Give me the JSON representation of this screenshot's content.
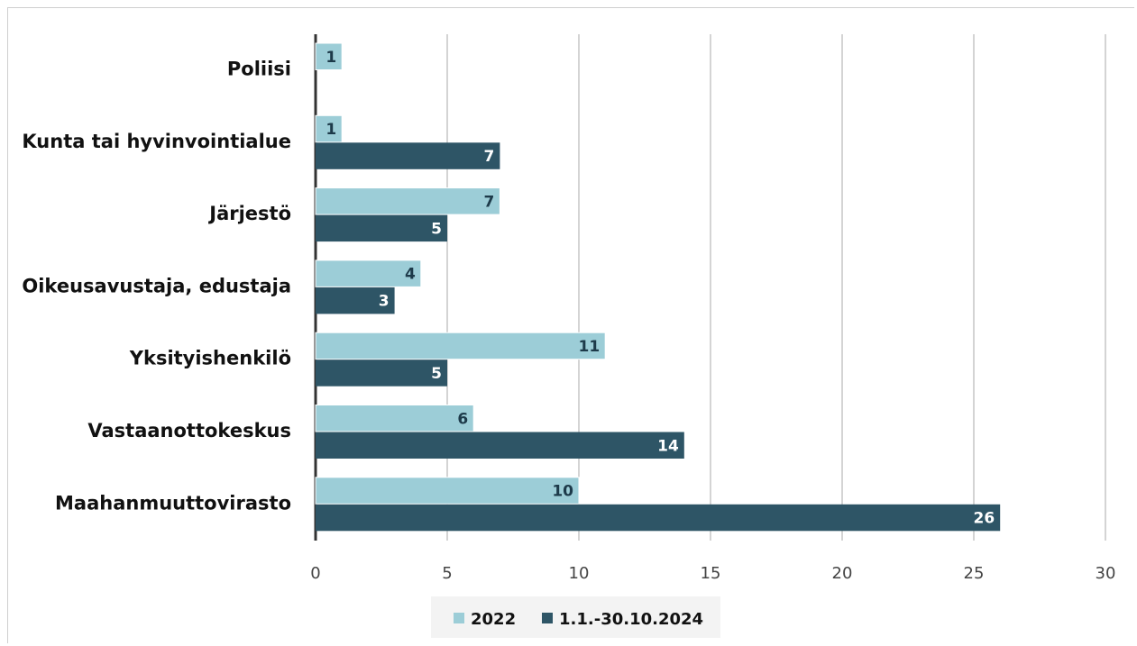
{
  "chart_data": {
    "type": "bar",
    "orientation": "horizontal",
    "categories": [
      "Poliisi",
      "Kunta tai hyvinvointialue",
      "Järjestö",
      "Oikeusavustaja, edustaja",
      "Yksityishenkilö",
      "Vastaanottokeskus",
      "Maahanmuuttovirasto"
    ],
    "series": [
      {
        "name": "2022",
        "values": [
          1,
          1,
          7,
          4,
          11,
          6,
          10
        ],
        "color": "#9ccdd7",
        "label_color": "#1d3a4a"
      },
      {
        "name": "1.1.-30.10.2024",
        "values": [
          null,
          7,
          5,
          3,
          5,
          14,
          26
        ],
        "color": "#2e5566",
        "label_color": "#ffffff"
      }
    ],
    "xlim": [
      0,
      30
    ],
    "xticks": [
      0,
      5,
      10,
      15,
      20,
      25,
      30
    ],
    "grid": true,
    "legend": "bottom",
    "data_labels": true
  }
}
